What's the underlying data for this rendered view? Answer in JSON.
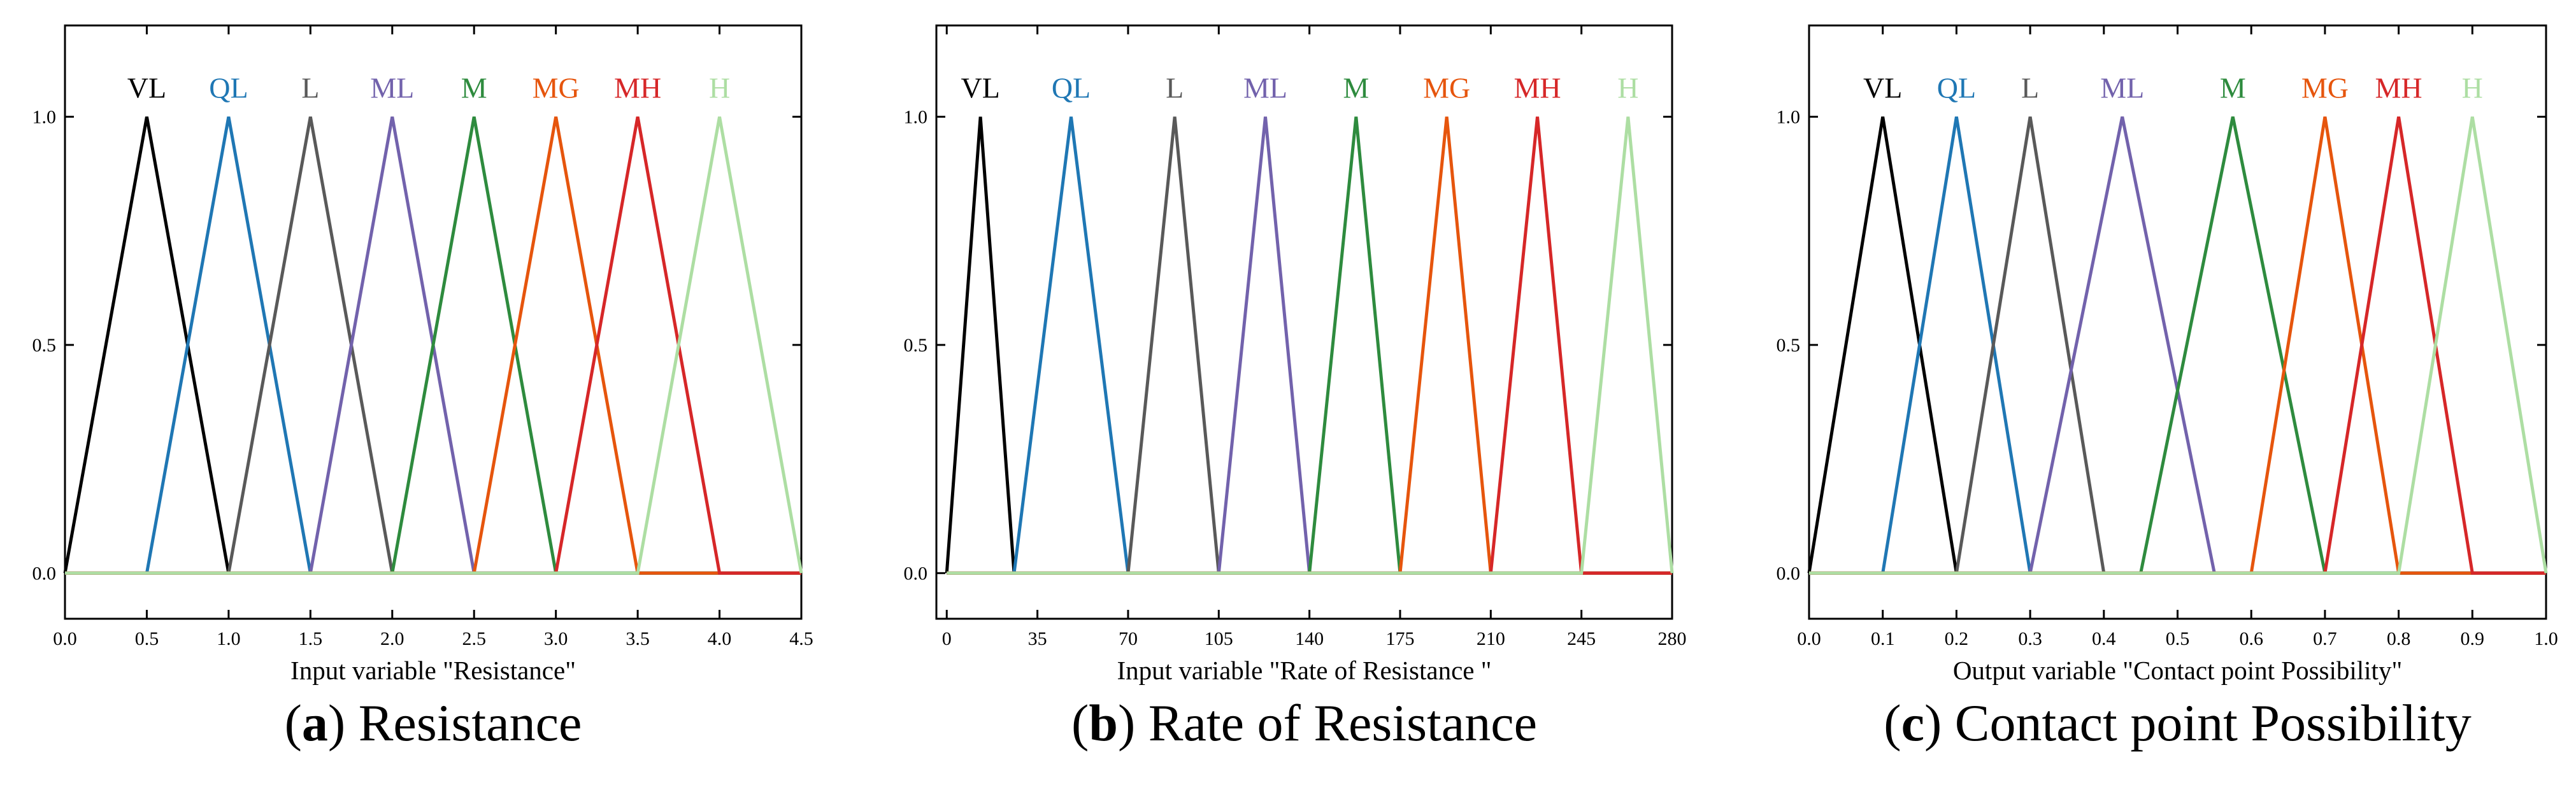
{
  "chart_data": [
    {
      "type": "line",
      "panel_letter": "a",
      "caption": "Resistance",
      "xlabel": "Input variable \"Resistance\"",
      "ylabel": "",
      "xlim": [
        0,
        4.5
      ],
      "ylim": [
        -0.1,
        1.2
      ],
      "xticks": [
        0,
        0.5,
        1.0,
        1.5,
        2.0,
        2.5,
        3.0,
        3.5,
        4.0,
        4.5
      ],
      "xtick_labels": [
        "0.0",
        "0.5",
        "1.0",
        "1.5",
        "2.0",
        "2.5",
        "3.0",
        "3.5",
        "4.0",
        "4.5"
      ],
      "yticks": [
        0,
        0.5,
        1.0
      ],
      "ytick_labels": [
        "0.0",
        "0.5",
        "1.0"
      ],
      "x_end": 4.5,
      "series": [
        {
          "name": "VL",
          "color": "#000000",
          "points": [
            0,
            0.5,
            1.0
          ]
        },
        {
          "name": "QL",
          "color": "#1f77b4",
          "points": [
            0.5,
            1.0,
            1.5
          ]
        },
        {
          "name": "L",
          "color": "#595959",
          "points": [
            1.0,
            1.5,
            2.0
          ]
        },
        {
          "name": "ML",
          "color": "#7262ac",
          "points": [
            1.5,
            2.0,
            2.5
          ]
        },
        {
          "name": "M",
          "color": "#2e8b3e",
          "points": [
            2.0,
            2.5,
            3.0
          ]
        },
        {
          "name": "MG",
          "color": "#e6550d",
          "points": [
            2.5,
            3.0,
            3.5
          ]
        },
        {
          "name": "MH",
          "color": "#d62728",
          "points": [
            3.0,
            3.5,
            4.0
          ]
        },
        {
          "name": "H",
          "color": "#addea3",
          "points": [
            3.5,
            4.0,
            4.5
          ]
        }
      ]
    },
    {
      "type": "line",
      "panel_letter": "b",
      "caption": "Rate of Resistance",
      "xlabel": "Input variable \"Rate of Resistance \"",
      "ylabel": "",
      "xlim": [
        -4,
        280
      ],
      "ylim": [
        -0.1,
        1.2
      ],
      "xticks": [
        0,
        35,
        70,
        105,
        140,
        175,
        210,
        245,
        280
      ],
      "xtick_labels": [
        "0",
        "35",
        "70",
        "105",
        "140",
        "175",
        "210",
        "245",
        "280"
      ],
      "yticks": [
        0,
        0.5,
        1.0
      ],
      "ytick_labels": [
        "0.0",
        "0.5",
        "1.0"
      ],
      "x_end": 280,
      "series": [
        {
          "name": "VL",
          "color": "#000000",
          "points": [
            0,
            13,
            26
          ]
        },
        {
          "name": "QL",
          "color": "#1f77b4",
          "points": [
            26,
            48,
            70
          ]
        },
        {
          "name": "L",
          "color": "#595959",
          "points": [
            70,
            88,
            105
          ]
        },
        {
          "name": "ML",
          "color": "#7262ac",
          "points": [
            105,
            123,
            140
          ]
        },
        {
          "name": "M",
          "color": "#2e8b3e",
          "points": [
            140,
            158,
            175
          ]
        },
        {
          "name": "MG",
          "color": "#e6550d",
          "points": [
            175,
            193,
            210
          ]
        },
        {
          "name": "MH",
          "color": "#d62728",
          "points": [
            210,
            228,
            245
          ]
        },
        {
          "name": "H",
          "color": "#addea3",
          "points": [
            245,
            263,
            280
          ]
        }
      ]
    },
    {
      "type": "line",
      "panel_letter": "c",
      "caption": "Contact point Possibility",
      "xlabel": "Output variable \"Contact point Possibility\"",
      "ylabel": "",
      "xlim": [
        0,
        1.0
      ],
      "ylim": [
        -0.1,
        1.2
      ],
      "xticks": [
        0,
        0.1,
        0.2,
        0.3,
        0.4,
        0.5,
        0.6,
        0.7,
        0.8,
        0.9,
        1.0
      ],
      "xtick_labels": [
        "0.0",
        "0.1",
        "0.2",
        "0.3",
        "0.4",
        "0.5",
        "0.6",
        "0.7",
        "0.8",
        "0.9",
        "1.0"
      ],
      "yticks": [
        0,
        0.5,
        1.0
      ],
      "ytick_labels": [
        "0.0",
        "0.5",
        "1.0"
      ],
      "x_end": 1.0,
      "series": [
        {
          "name": "VL",
          "color": "#000000",
          "points": [
            0,
            0.1,
            0.2
          ]
        },
        {
          "name": "QL",
          "color": "#1f77b4",
          "points": [
            0.1,
            0.2,
            0.3
          ]
        },
        {
          "name": "L",
          "color": "#595959",
          "points": [
            0.2,
            0.3,
            0.4
          ]
        },
        {
          "name": "ML",
          "color": "#7262ac",
          "points": [
            0.3,
            0.425,
            0.55
          ]
        },
        {
          "name": "M",
          "color": "#2e8b3e",
          "points": [
            0.45,
            0.575,
            0.7
          ]
        },
        {
          "name": "MG",
          "color": "#e6550d",
          "points": [
            0.6,
            0.7,
            0.8
          ]
        },
        {
          "name": "MH",
          "color": "#d62728",
          "points": [
            0.7,
            0.8,
            0.9
          ]
        },
        {
          "name": "H",
          "color": "#addea3",
          "points": [
            0.8,
            0.9,
            1.0
          ]
        }
      ]
    }
  ]
}
